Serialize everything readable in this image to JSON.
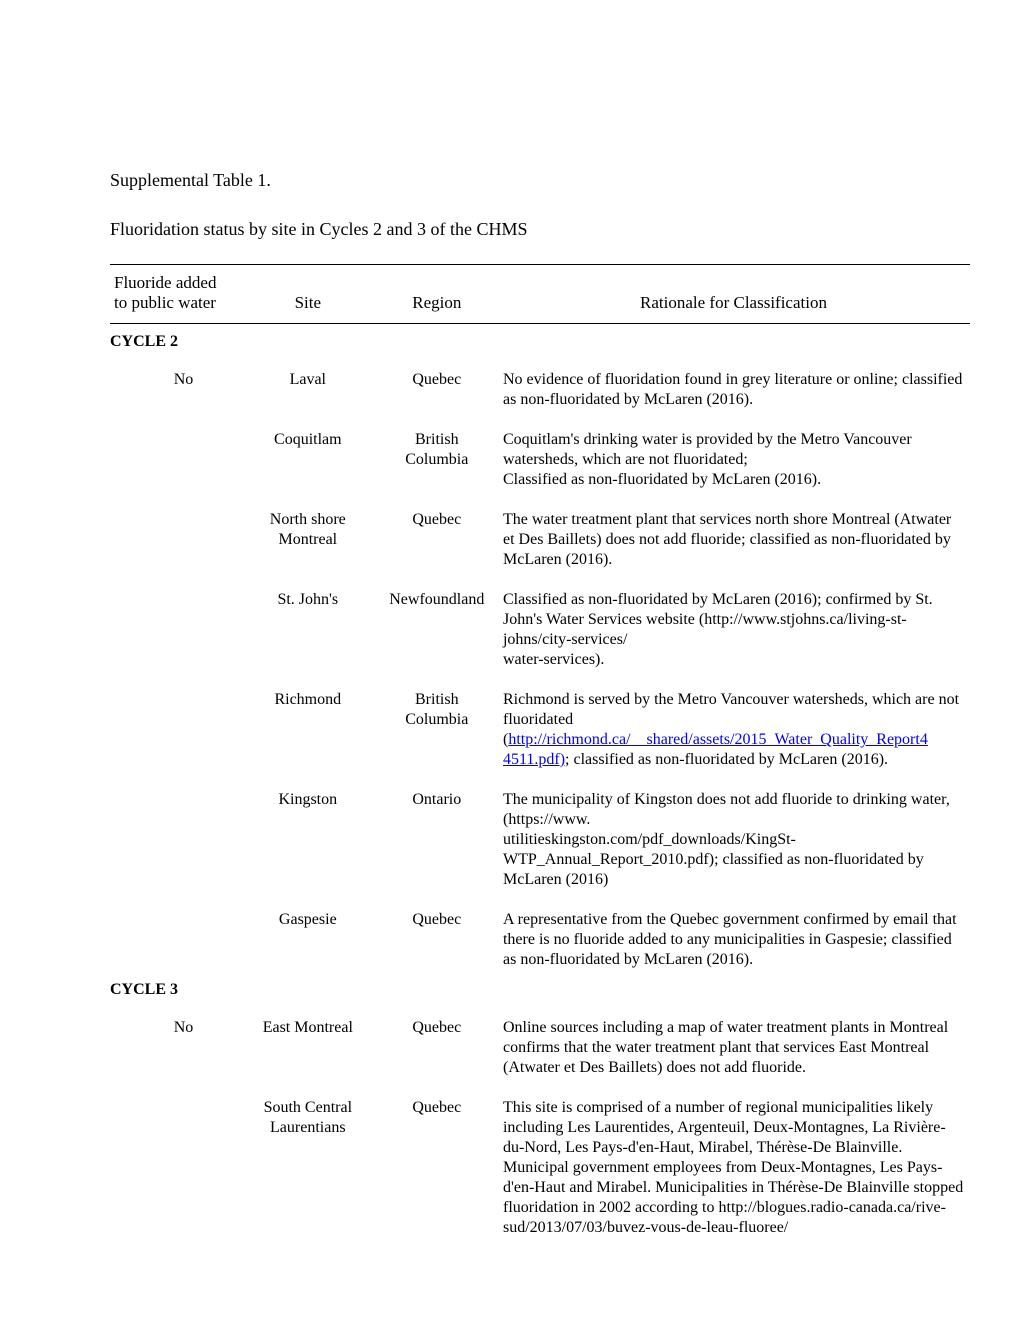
{
  "title": "Supplemental Table 1.",
  "subtitle": "Fluoridation status by site in Cycles 2 and 3 of the CHMS",
  "headers": {
    "col1a": "Fluoride added",
    "col1b": "to public water",
    "col2": "Site",
    "col3": "Region",
    "col4": "Rationale for Classification"
  },
  "cycle2_label": "CYCLE 2",
  "cycle3_label": "CYCLE 3",
  "c2_no": "No",
  "c2r1_site": "Laval",
  "c2r1_region": "Quebec",
  "c2r1_rat": "No evidence of fluoridation found in grey literature or online; classified as non-fluoridated by McLaren (2016).",
  "c2r2_site": "Coquitlam",
  "c2r2_region": "British Columbia",
  "c2r2_rat": "Coquitlam's drinking water is provided by the Metro Vancouver watersheds, which are not fluoridated;\nClassified as non-fluoridated by McLaren (2016).",
  "c2r3_site": "North shore Montreal",
  "c2r3_region": "Quebec",
  "c2r3_rat": "The water treatment plant that services north shore Montreal (Atwater et Des Baillets) does not add fluoride; classified as non-fluoridated by McLaren (2016).",
  "c2r4_site": "St. John's",
  "c2r4_region": "Newfoundland",
  "c2r4_rat": "Classified as non-fluoridated by McLaren (2016); confirmed by St. John's Water Services website (http://www.stjohns.ca/living-st-johns/city-services/\nwater-services).",
  "c2r5_site": "Richmond",
  "c2r5_region": "British Columbia",
  "c2r5_rat_a": "Richmond is served by the Metro Vancouver watersheds, which are not fluoridated",
  "c2r5_rat_b": "(",
  "c2r5_link1": "http://richmond.ca/__shared/assets/2015_Water_Quality_Report4",
  "c2r5_link2": "4511.pdf)",
  "c2r5_rat_c": "; classified as non-fluoridated by McLaren (2016).",
  "c2r6_site": "Kingston",
  "c2r6_region": "Ontario",
  "c2r6_rat": "The municipality of Kingston does not add fluoride to drinking water, (https://www.\nutilitieskingston.com/pdf_downloads/KingSt-WTP_Annual_Report_2010.pdf); classified as non-fluoridated by McLaren (2016)",
  "c2r7_site": "Gaspesie",
  "c2r7_region": "Quebec",
  "c2r7_rat": "A representative from the Quebec government confirmed by email that there is no fluoride added to any municipalities in Gaspesie; classified as non-fluoridated by McLaren (2016).",
  "c3_no": "No",
  "c3r1_site": "East Montreal",
  "c3r1_region": "Quebec",
  "c3r1_rat": "Online sources including a map of water treatment plants in Montreal confirms that the water treatment plant that services East Montreal (Atwater et Des Baillets) does not add fluoride.",
  "c3r2_site": "South Central Laurentians",
  "c3r2_region": "Quebec",
  "c3r2_rat": "This site is comprised of a number of regional municipalities likely including Les Laurentides, Argenteuil, Deux-Montagnes, La Rivière-du-Nord, Les Pays-d'en-Haut, Mirabel, Thérèse-De Blainville. Municipal government employees from Deux-Montagnes, Les Pays-d'en-Haut and Mirabel. Municipalities in Thérèse-De Blainville stopped fluoridation in 2002 according to http://blogues.radio-canada.ca/rive-sud/2013/07/03/buvez-vous-de-leau-fluoree/"
}
